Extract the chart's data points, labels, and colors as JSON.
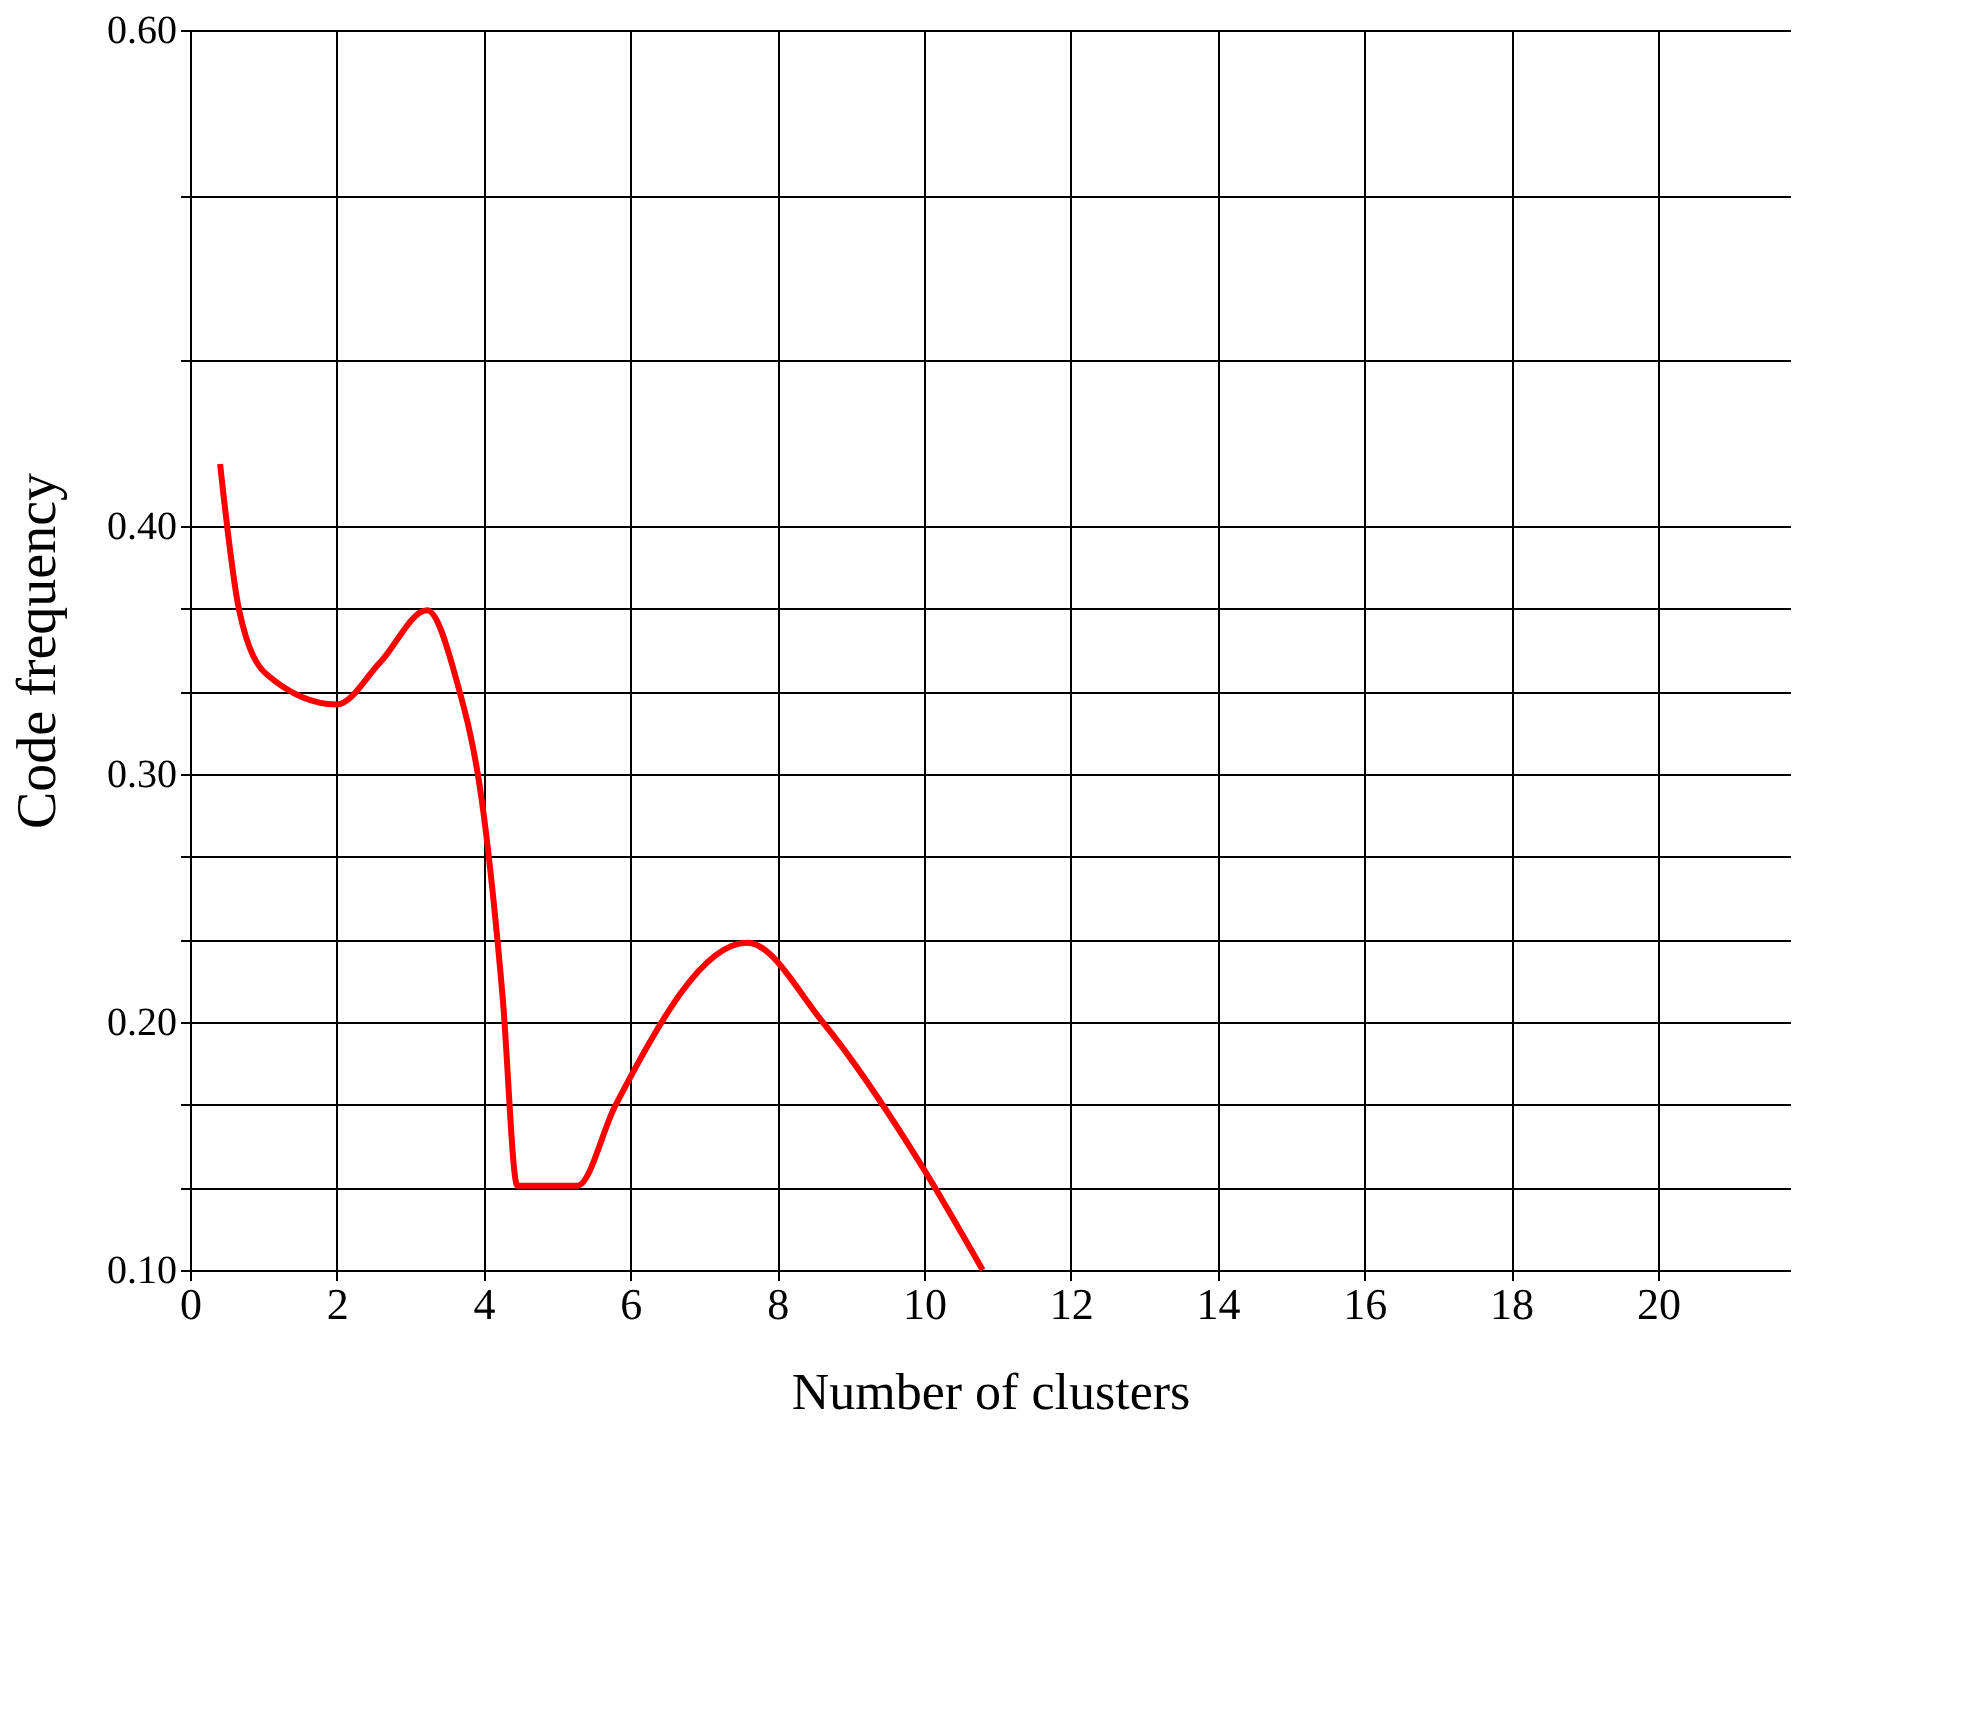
{
  "chart_data": {
    "type": "line",
    "xlabel": "Number of clusters",
    "ylabel": "Code frequency",
    "x": [
      0.41,
      0.67,
      1.05,
      2.0,
      2.59,
      3.23,
      3.62,
      4.0,
      4.26,
      4.46,
      5.28,
      5.79,
      7.59,
      8.62,
      9.97,
      10.8
    ],
    "series": [
      {
        "color": "#ff0000",
        "values": [
          0.425,
          0.366,
          0.34,
          0.328,
          0.345,
          0.366,
          0.339,
          0.284,
          0.21,
          0.134,
          0.134,
          0.166,
          0.232,
          0.2,
          0.142,
          0.1
        ]
      }
    ],
    "xlim": [
      0,
      21.8
    ],
    "ylim": [
      0.1,
      0.6
    ],
    "xticks": [
      0,
      2,
      4,
      6,
      8,
      10,
      12,
      14,
      16,
      18,
      20
    ],
    "yticks": [
      {
        "value": 0.1,
        "label": "0.10"
      },
      {
        "value": 0.1333,
        "label": null
      },
      {
        "value": 0.1667,
        "label": null
      },
      {
        "value": 0.2,
        "label": "0.20"
      },
      {
        "value": 0.2333,
        "label": null
      },
      {
        "value": 0.2667,
        "label": null
      },
      {
        "value": 0.3,
        "label": "0.30"
      },
      {
        "value": 0.3333,
        "label": null
      },
      {
        "value": 0.3667,
        "label": null
      },
      {
        "value": 0.4,
        "label": "0.40"
      },
      {
        "value": 0.4667,
        "label": null
      },
      {
        "value": 0.5333,
        "label": null
      },
      {
        "value": 0.6,
        "label": "0.60"
      }
    ],
    "grid": true,
    "marker": "none",
    "line_style": "solid"
  }
}
